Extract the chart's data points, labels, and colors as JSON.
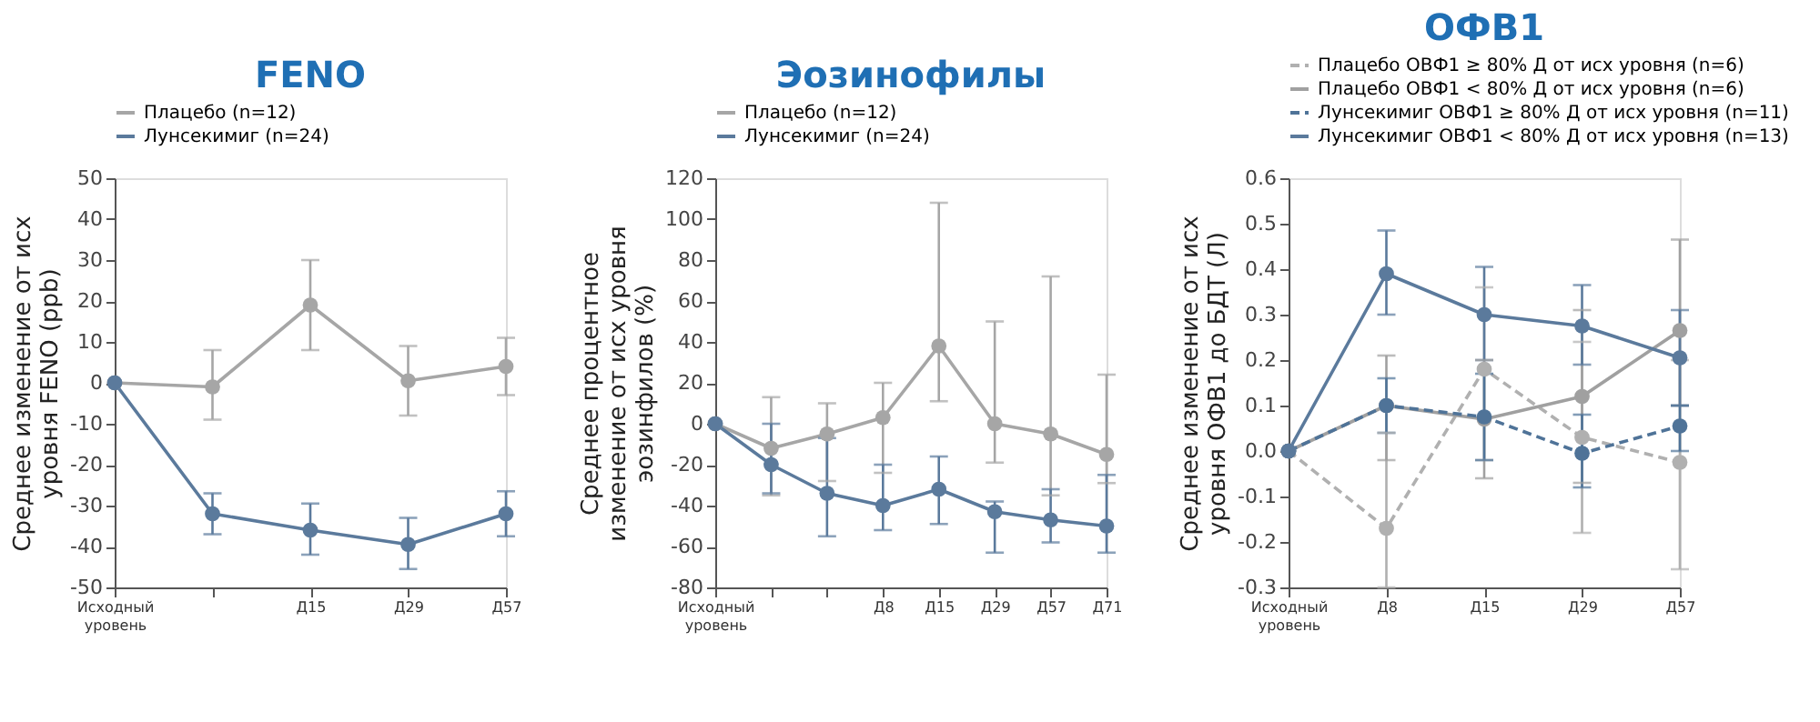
{
  "chart_data": [
    {
      "type": "line",
      "title": "FENO",
      "ylabel": "Среднее изменение от исх\nуровня FENO (ppb)",
      "marker": "circle",
      "legend": "top",
      "grid": false,
      "categories": [
        "Исходный\nуровень",
        null,
        "Д15",
        "Д29",
        "Д57"
      ],
      "ylim": [
        -50,
        50
      ],
      "yticks": [
        -50,
        -40,
        -30,
        -20,
        -10,
        0,
        10,
        20,
        30,
        40,
        50
      ],
      "series": [
        {
          "name": "Плацебо (n=12)",
          "color": "#a6a6a6",
          "line_style": "solid",
          "values": [
            0,
            -1,
            19,
            0.5,
            4
          ],
          "errors": [
            null,
            [
              -9,
              8
            ],
            [
              8,
              30
            ],
            [
              -8,
              9
            ],
            [
              -3,
              11
            ]
          ]
        },
        {
          "name": "Лунсекимиг (n=24)",
          "color": "#5b7a9c",
          "line_style": "solid",
          "values": [
            0,
            -32,
            -36,
            -39.5,
            -32
          ],
          "errors": [
            null,
            [
              -37,
              -27
            ],
            [
              -42,
              -29.5
            ],
            [
              -45.5,
              -33
            ],
            [
              -37.5,
              -26.5
            ]
          ]
        }
      ]
    },
    {
      "type": "line",
      "title": "Эозинофилы",
      "ylabel": "Среднее  процентное\nизменение от исх уровня\nэозинфилов (%)",
      "marker": "circle",
      "legend": "top",
      "grid": false,
      "categories": [
        "Исходный\nуровень",
        null,
        null,
        "Д8",
        "Д15",
        "Д29",
        "Д57",
        "Д71"
      ],
      "ylim": [
        -80,
        120
      ],
      "yticks": [
        -80,
        -60,
        -40,
        -20,
        0,
        20,
        40,
        60,
        80,
        100,
        120
      ],
      "series": [
        {
          "name": "Плацебо (n=12)",
          "color": "#a6a6a6",
          "line_style": "solid",
          "values": [
            0,
            -12,
            -5,
            3,
            38,
            0,
            -5,
            -15
          ],
          "errors": [
            null,
            [
              -35,
              13
            ],
            [
              -28,
              10
            ],
            [
              -24,
              20
            ],
            [
              11,
              108
            ],
            [
              -19,
              50
            ],
            [
              -35,
              72
            ],
            [
              -29,
              24
            ]
          ]
        },
        {
          "name": "Лунсекимиг (n=24)",
          "color": "#5b7a9c",
          "line_style": "solid",
          "values": [
            0,
            -20,
            -34,
            -40,
            -32,
            -43,
            -47,
            -50
          ],
          "errors": [
            null,
            [
              -34,
              0
            ],
            [
              -55,
              -7
            ],
            [
              -52,
              -20
            ],
            [
              -49,
              -16
            ],
            [
              -63,
              -38
            ],
            [
              -58,
              -32
            ],
            [
              -63,
              -25
            ]
          ]
        }
      ]
    },
    {
      "type": "line",
      "title": "ОФВ1",
      "ylabel": "Среднее  изменение от исх\nуровня ОФВ1 до БДТ (Л)",
      "marker": "circle",
      "legend": "top",
      "grid": false,
      "categories": [
        "Исходный\nуровень",
        "Д8",
        "Д15",
        "Д29",
        "Д57"
      ],
      "ylim": [
        -0.3,
        0.6
      ],
      "yticks": [
        -0.3,
        -0.2,
        -0.1,
        {
          "value": 0,
          "label": "0.0"
        },
        0.1,
        0.2,
        0.3,
        0.4,
        0.5,
        0.6
      ],
      "series": [
        {
          "name": "Плацебо ОВФ1 ≥ 80% Д от исх уровня (n=6)",
          "color": "#b0b0b0",
          "line_style": "dashed",
          "values": [
            0,
            -0.17,
            0.18,
            0.03,
            -0.025
          ],
          "errors": [
            null,
            [
              -0.3,
              0.04
            ],
            [
              -0.02,
              0.36
            ],
            [
              -0.18,
              0.24
            ],
            [
              -0.26,
              0.2
            ]
          ]
        },
        {
          "name": "Плацебо ОВФ1 < 80% Д от исх уровня (n=6)",
          "color": "#a0a0a0",
          "line_style": "solid",
          "values": [
            0,
            0.1,
            0.07,
            0.12,
            0.265
          ],
          "errors": [
            null,
            [
              -0.02,
              0.21
            ],
            [
              -0.06,
              0.2
            ],
            [
              -0.07,
              0.31
            ],
            [
              0.1,
              0.465
            ]
          ]
        },
        {
          "name": "Лунсекимиг ОВФ1 ≥ 80% Д от исх уровня (n=11)",
          "color": "#4f7398",
          "line_style": "dashed",
          "values": [
            0,
            0.1,
            0.075,
            -0.005,
            0.055
          ],
          "errors": [
            null,
            [
              0.04,
              0.16
            ],
            [
              -0.02,
              0.17
            ],
            [
              -0.08,
              0.08
            ],
            [
              0.0,
              0.1
            ]
          ]
        },
        {
          "name": "Лунсекимиг ОВФ1 < 80% Д от исх уровня (n=13)",
          "color": "#5b7a9c",
          "line_style": "solid",
          "values": [
            0,
            0.39,
            0.3,
            0.275,
            0.205
          ],
          "errors": [
            null,
            [
              0.3,
              0.485
            ],
            [
              0.2,
              0.405
            ],
            [
              0.19,
              0.365
            ],
            [
              0.1,
              0.31
            ]
          ]
        }
      ]
    }
  ]
}
